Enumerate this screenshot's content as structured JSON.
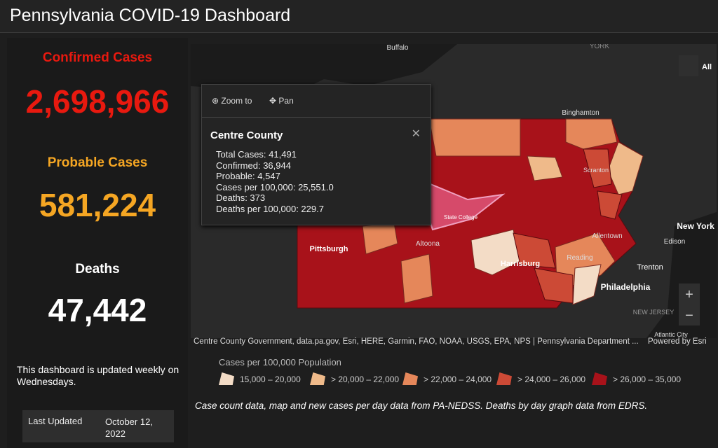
{
  "header": {
    "title": "Pennsylvania COVID-19 Dashboard"
  },
  "stats": [
    {
      "label": "Confirmed Cases",
      "value": "2,698,966",
      "color": "#e8190f"
    },
    {
      "label": "Probable Cases",
      "value": "581,224",
      "color": "#f5a623"
    },
    {
      "label": "Deaths",
      "value": "47,442",
      "color": "#ffffff"
    }
  ],
  "note": "This dashboard is updated weekly on Wednesdays.",
  "last_updated": {
    "label": "Last Updated",
    "value": "October 12, 2022"
  },
  "map": {
    "home_label": "All",
    "places": [
      "Buffalo",
      "YORK",
      "Binghamton",
      "Scranton",
      "New York",
      "Edison",
      "Allentown",
      "Pittsburgh",
      "Altoona",
      "State College",
      "Harrisburg",
      "Reading",
      "Trenton",
      "Philadelphia",
      "NEW JERSEY",
      "Atlantic City"
    ],
    "popup": {
      "actions": [
        "Zoom to",
        "Pan"
      ],
      "title": "Centre County",
      "lines": [
        "Total Cases: 41,491",
        "Confirmed: 36,944",
        "Probable: 4,547",
        "Cases per 100,000: 25,551.0",
        "Deaths: 373",
        "Deaths per 100,000: 229.7"
      ]
    },
    "attribution": "Centre County Government, data.pa.gov, Esri, HERE, Garmin, FAO, NOAA, USGS, EPA, NPS | Pennsylvania Department ...",
    "powered_by": "Powered by Esri"
  },
  "legend": {
    "title": "Cases per 100,000 Population",
    "items": [
      {
        "label": "15,000 – 20,000",
        "color": "#f3dcc6"
      },
      {
        "label": "> 20,000 – 22,000",
        "color": "#efba8a"
      },
      {
        "label": "> 22,000 – 24,000",
        "color": "#e5875a"
      },
      {
        "label": "> 24,000 – 26,000",
        "color": "#cc4a36"
      },
      {
        "label": "> 26,000 – 35,000",
        "color": "#a8121a"
      }
    ]
  },
  "footnote": "Case count data, map and new cases per day data from PA-NEDSS.  Deaths by day graph data from EDRS."
}
